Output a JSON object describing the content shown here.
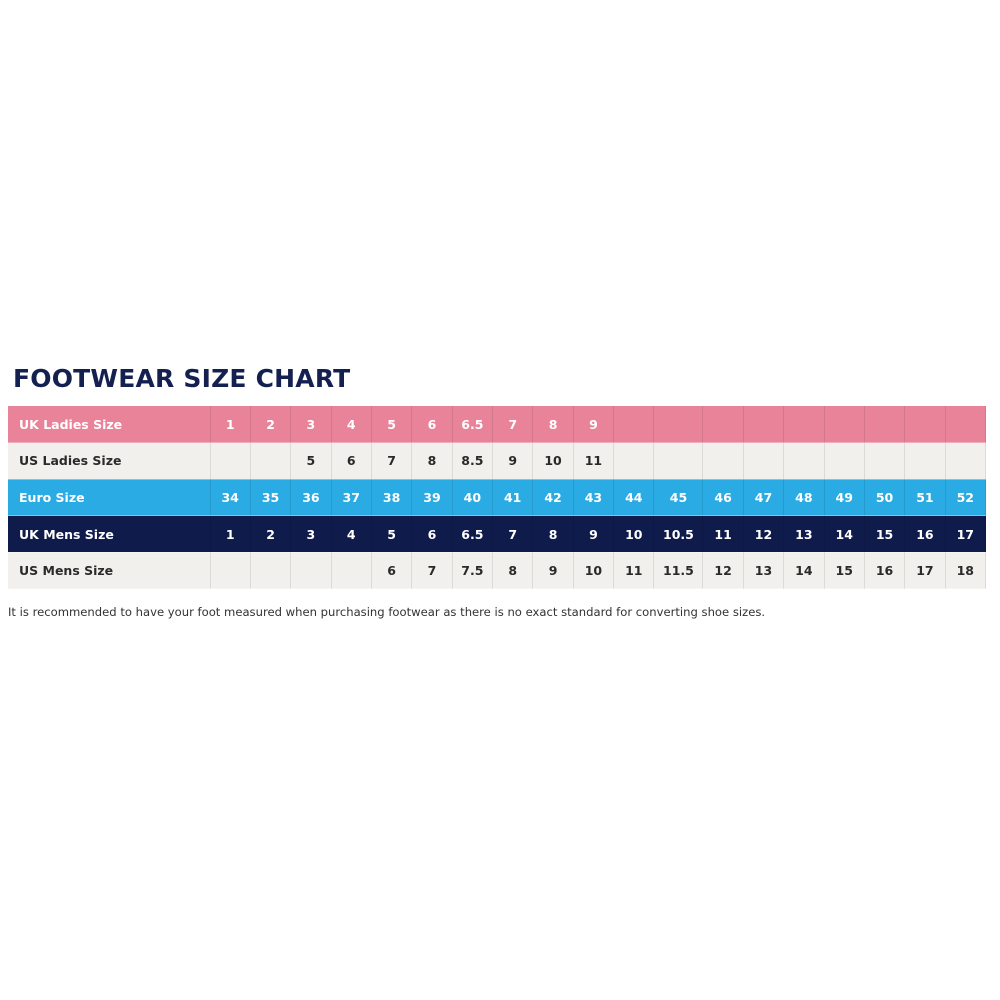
{
  "title": "FOOTWEAR SIZE CHART",
  "colors": {
    "title": "#14204f",
    "pink": "#e8839a",
    "grey": "#f1f0ec",
    "blue": "#2aabe4",
    "navy": "#0f1c4b"
  },
  "rows": [
    {
      "label": "UK Ladies Size",
      "style": "pink",
      "values": [
        "1",
        "2",
        "3",
        "4",
        "5",
        "6",
        "6.5",
        "7",
        "8",
        "9",
        "",
        "",
        "",
        "",
        "",
        "",
        "",
        "",
        ""
      ]
    },
    {
      "label": "US Ladies Size",
      "style": "grey",
      "values": [
        "",
        "",
        "5",
        "6",
        "7",
        "8",
        "8.5",
        "9",
        "10",
        "11",
        "",
        "",
        "",
        "",
        "",
        "",
        "",
        "",
        ""
      ]
    },
    {
      "label": "Euro Size",
      "style": "blue",
      "values": [
        "34",
        "35",
        "36",
        "37",
        "38",
        "39",
        "40",
        "41",
        "42",
        "43",
        "44",
        "45",
        "46",
        "47",
        "48",
        "49",
        "50",
        "51",
        "52"
      ]
    },
    {
      "label": "UK Mens Size",
      "style": "navy",
      "values": [
        "1",
        "2",
        "3",
        "4",
        "5",
        "6",
        "6.5",
        "7",
        "8",
        "9",
        "10",
        "10.5",
        "11",
        "12",
        "13",
        "14",
        "15",
        "16",
        "17"
      ]
    },
    {
      "label": "US Mens Size",
      "style": "grey",
      "values": [
        "",
        "",
        "",
        "",
        "6",
        "7",
        "7.5",
        "8",
        "9",
        "10",
        "11",
        "11.5",
        "12",
        "13",
        "14",
        "15",
        "16",
        "17",
        "18"
      ]
    }
  ],
  "note": "It is recommended to have your foot measured when purchasing footwear as there is no exact standard for converting shoe sizes."
}
